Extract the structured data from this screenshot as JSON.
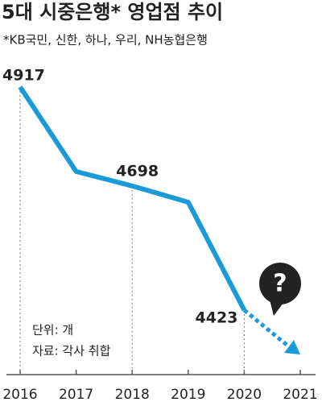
{
  "chart_data": {
    "type": "line",
    "title": "5대 시중은행* 영업점 추이",
    "subtitle": "*KB국민, 신한, 하나, 우리, NH농협은행",
    "categories": [
      "2016",
      "2017",
      "2018",
      "2019",
      "2020",
      "2021"
    ],
    "series": [
      {
        "name": "영업점",
        "color": "#1a9ad6",
        "values": [
          4917,
          4730,
          4698,
          4662,
          4423,
          null
        ]
      }
    ],
    "labeled_points": [
      0,
      2,
      4
    ],
    "projection_mark": "?",
    "notes": [
      "단위: 개",
      "자료: 각사 취합"
    ]
  }
}
